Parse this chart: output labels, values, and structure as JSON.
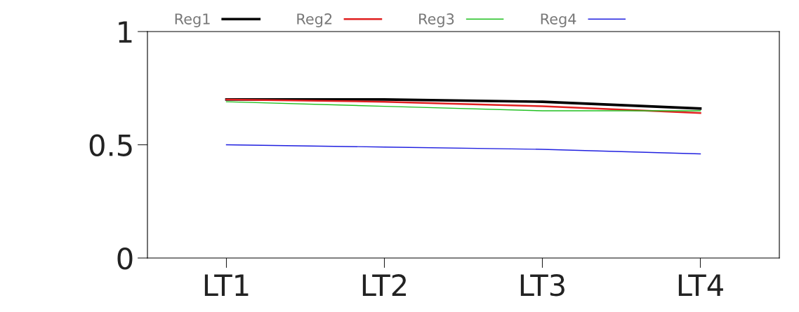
{
  "chart_data": {
    "type": "line",
    "categories": [
      "LT1",
      "LT2",
      "LT3",
      "LT4"
    ],
    "series": [
      {
        "name": "Reg1",
        "color": "#000000",
        "values": [
          0.7,
          0.7,
          0.69,
          0.66
        ]
      },
      {
        "name": "Reg2",
        "color": "#e02020",
        "values": [
          0.7,
          0.69,
          0.67,
          0.64
        ]
      },
      {
        "name": "Reg3",
        "color": "#20c020",
        "values": [
          0.69,
          0.67,
          0.65,
          0.65
        ]
      },
      {
        "name": "Reg4",
        "color": "#2020e0",
        "values": [
          0.5,
          0.49,
          0.48,
          0.46
        ]
      }
    ],
    "ylim": [
      0,
      1
    ],
    "yticks": [
      0,
      {
        "value": 0.5,
        "label": "0.5"
      },
      1
    ],
    "grid": false,
    "legend": "top",
    "marker": "none",
    "line_style": "solid"
  }
}
